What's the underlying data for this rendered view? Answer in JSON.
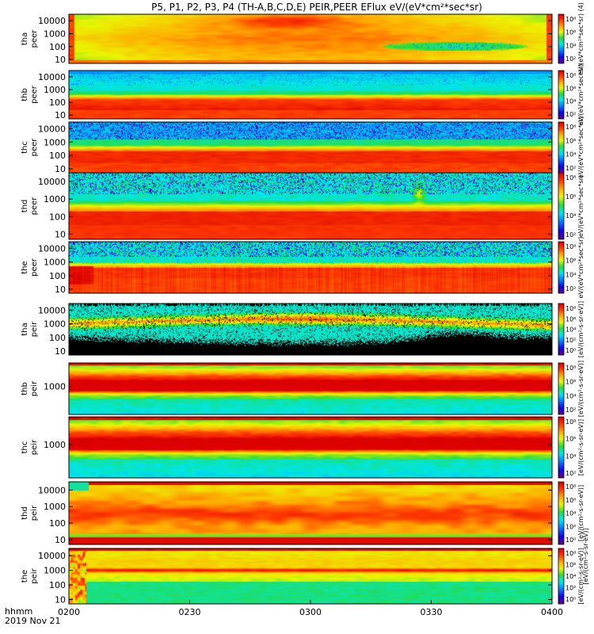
{
  "chart_data": {
    "type": "heatmap",
    "title": "P5, P1, P2, P3, P4 (TH-A,B,C,D,E) PEIR,PEER EFlux eV/(eV*cm²*sec*sr)",
    "xaxis": {
      "range_label": [
        "0200",
        "0400"
      ],
      "tick_labels": [
        "0200",
        "0230",
        "0300",
        "0330",
        "0400"
      ],
      "tick_values_min": [
        0,
        30,
        60,
        90,
        120
      ],
      "corner_label_top": "hhmm",
      "corner_label_bottom": "2019 Nov 21"
    },
    "colorbar_unit_label": "[eV/(cm²-s-sr-eV)]",
    "panels": [
      {
        "probe": "tha",
        "species": "peer",
        "y_ticks": [
          "10000",
          "1000",
          "100",
          "10"
        ],
        "y_log_range": [
          0.7,
          4.5
        ],
        "cbar_ticks": [
          "10⁸",
          "10⁶",
          "10⁴",
          "10²"
        ],
        "cbar_unit": "eV/(eV*cm²*sec*sr) (4)"
      },
      {
        "probe": "thb",
        "species": "peer",
        "y_ticks": [
          "10000",
          "1000",
          "100",
          "10"
        ],
        "y_log_range": [
          0.7,
          4.5
        ],
        "cbar_ticks": [
          "10⁸",
          "10⁶",
          "10⁴",
          "10²"
        ],
        "cbar_unit": "eV/(eV*cm²*sec*sr)"
      },
      {
        "probe": "thc",
        "species": "peer",
        "y_ticks": [
          "10000",
          "1000",
          "100",
          "10"
        ],
        "y_log_range": [
          0.7,
          4.5
        ],
        "cbar_ticks": [
          "10⁸",
          "10⁶",
          "10⁴",
          "10²"
        ],
        "cbar_unit": "eV/(eV*cm²*sec*sr)"
      },
      {
        "probe": "thd",
        "species": "peer",
        "y_ticks": [
          "10000",
          "1000",
          "100",
          "10"
        ],
        "y_log_range": [
          0.7,
          4.5
        ],
        "cbar_ticks": [
          "10⁸",
          "10⁶",
          "10⁴",
          "10²"
        ],
        "cbar_unit": "eV/(eV*cm²*sec*sr)"
      },
      {
        "probe": "the",
        "species": "peer",
        "y_ticks": [
          "10000",
          "1000",
          "100",
          "10"
        ],
        "y_log_range": [
          0.7,
          4.5
        ],
        "cbar_ticks": [
          "10⁸",
          "10⁶",
          "10⁴",
          "10²"
        ],
        "cbar_unit": "eV/(eV*cm²*sec*sr)"
      },
      {
        "probe": "tha",
        "species": "peir",
        "y_ticks": [
          "10000",
          "1000",
          "100",
          "10"
        ],
        "y_log_range": [
          0.7,
          4.5
        ],
        "cbar_ticks": [
          "10⁸",
          "10⁶",
          "10⁴",
          "10²",
          "10⁰"
        ],
        "cbar_unit": "[eV/(cm²-s-sr-eV)]"
      },
      {
        "probe": "thb",
        "species": "peir",
        "y_ticks": [
          "1000"
        ],
        "y_log_range": [
          1.2,
          4.5
        ],
        "cbar_ticks": [
          "10⁸",
          "10⁶",
          "10⁴",
          "10²"
        ],
        "cbar_unit": "[eV/(cm²-s-sr-eV)]"
      },
      {
        "probe": "thc",
        "species": "peir",
        "y_ticks": [
          "1000"
        ],
        "y_log_range": [
          1.2,
          4.5
        ],
        "cbar_ticks": [
          "10⁸",
          "10⁶",
          "10⁴",
          "10²"
        ],
        "cbar_unit": "[eV/(cm²-s-sr-eV)]"
      },
      {
        "probe": "thd",
        "species": "peir",
        "y_ticks": [
          "10000",
          "1000",
          "100",
          "10"
        ],
        "y_log_range": [
          0.7,
          4.5
        ],
        "cbar_ticks": [
          "10⁸",
          "10⁶",
          "10⁴",
          "10²",
          "10⁰"
        ],
        "cbar_unit": "[eV/(cm²-s-sr-eV)]"
      },
      {
        "probe": "the",
        "species": "peir",
        "y_ticks": [
          "10000",
          "1000",
          "100",
          "10"
        ],
        "y_log_range": [
          0.7,
          4.5
        ],
        "cbar_ticks": [
          "10⁸",
          "10⁶",
          "10⁴",
          "10²",
          "10⁰"
        ],
        "cbar_unit": "[eV/(cm²-s-sr-eV)]"
      }
    ]
  }
}
